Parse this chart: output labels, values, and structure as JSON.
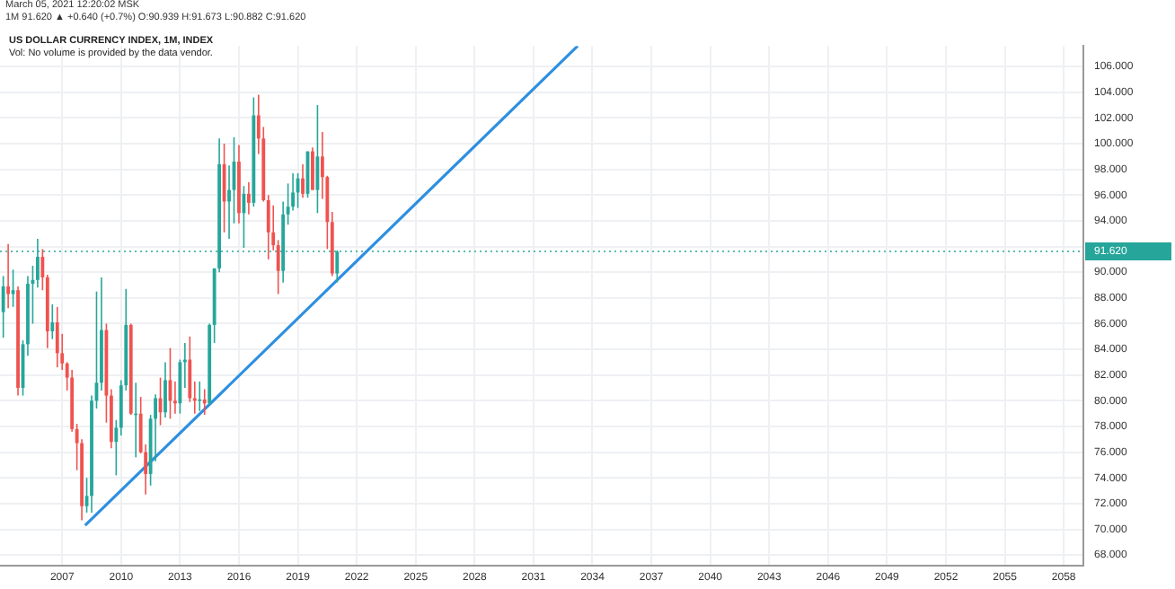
{
  "chart_data": {
    "type": "candlestick",
    "title": "US DOLLAR CURRENCY INDEX, 1M, INDEX",
    "subtitle": "Vol: No volume is provided by the data vendor.",
    "annotations": [
      "March 05, 2021 12:20:02 MSK",
      "1M 91.620 ▲ +0.640 (+0.7%) O:90.939 H:91.673 L:90.882 C:91.620"
    ],
    "x": [
      "2004-01",
      "2004-04",
      "2004-07",
      "2004-10",
      "2005-01",
      "2005-04",
      "2005-07",
      "2005-10",
      "2006-01",
      "2006-04",
      "2006-07",
      "2006-10",
      "2007-01",
      "2007-04",
      "2007-07",
      "2007-10",
      "2008-01",
      "2008-04",
      "2008-07",
      "2008-10",
      "2009-01",
      "2009-04",
      "2009-07",
      "2009-10",
      "2010-01",
      "2010-04",
      "2010-07",
      "2010-10",
      "2011-01",
      "2011-04",
      "2011-07",
      "2011-10",
      "2012-01",
      "2012-04",
      "2012-07",
      "2012-10",
      "2013-01",
      "2013-04",
      "2013-07",
      "2013-10",
      "2014-01",
      "2014-04",
      "2014-07",
      "2014-10",
      "2015-01",
      "2015-04",
      "2015-07",
      "2015-10",
      "2016-01",
      "2016-04",
      "2016-07",
      "2016-10",
      "2017-01",
      "2017-04",
      "2017-07",
      "2017-10",
      "2018-01",
      "2018-04",
      "2018-07",
      "2018-10",
      "2019-01",
      "2019-04",
      "2019-07",
      "2019-10",
      "2020-01",
      "2020-04",
      "2020-07",
      "2020-10",
      "2021-01"
    ],
    "ohlc": [
      [
        86.9,
        89.7,
        84.9,
        88.9
      ],
      [
        88.9,
        92.2,
        87.2,
        88.3
      ],
      [
        88.3,
        90.2,
        87.3,
        88.6
      ],
      [
        88.6,
        88.9,
        80.4,
        81.0
      ],
      [
        81.0,
        84.7,
        80.4,
        84.4
      ],
      [
        84.4,
        89.7,
        83.5,
        89.1
      ],
      [
        89.1,
        90.5,
        86.0,
        89.4
      ],
      [
        89.4,
        92.6,
        88.8,
        91.2
      ],
      [
        91.2,
        91.8,
        88.6,
        89.6
      ],
      [
        89.6,
        89.8,
        84.1,
        85.4
      ],
      [
        85.4,
        87.5,
        84.8,
        86.1
      ],
      [
        86.1,
        87.3,
        82.6,
        83.7
      ],
      [
        83.7,
        85.2,
        82.4,
        82.9
      ],
      [
        82.9,
        83.0,
        80.8,
        81.8
      ],
      [
        81.8,
        82.4,
        77.6,
        77.8
      ],
      [
        77.8,
        78.2,
        74.6,
        76.7
      ],
      [
        76.7,
        77.0,
        70.7,
        71.8
      ],
      [
        71.8,
        74.0,
        71.3,
        72.6
      ],
      [
        72.6,
        80.4,
        71.3,
        80.0
      ],
      [
        80.0,
        88.5,
        79.4,
        81.4
      ],
      [
        81.4,
        89.6,
        80.8,
        85.5
      ],
      [
        85.5,
        86.0,
        78.3,
        80.4
      ],
      [
        80.4,
        80.9,
        76.3,
        76.8
      ],
      [
        76.8,
        78.5,
        74.2,
        77.9
      ],
      [
        77.9,
        81.6,
        77.3,
        81.2
      ],
      [
        81.2,
        88.7,
        80.8,
        85.9
      ],
      [
        85.9,
        86.0,
        78.9,
        79.0
      ],
      [
        79.0,
        81.4,
        75.6,
        79.0
      ],
      [
        79.0,
        80.3,
        75.9,
        76.0
      ],
      [
        76.0,
        76.6,
        72.7,
        74.3
      ],
      [
        74.3,
        78.9,
        73.4,
        78.6
      ],
      [
        78.6,
        80.5,
        75.3,
        80.2
      ],
      [
        80.2,
        81.8,
        78.1,
        79.1
      ],
      [
        79.1,
        83.0,
        78.7,
        81.6
      ],
      [
        81.6,
        84.1,
        78.6,
        80.0
      ],
      [
        80.0,
        81.5,
        79.0,
        79.8
      ],
      [
        79.8,
        83.2,
        79.0,
        83.0
      ],
      [
        83.0,
        84.5,
        81.0,
        83.2
      ],
      [
        83.2,
        85.0,
        79.9,
        80.2
      ],
      [
        80.2,
        81.5,
        79.0,
        80.0
      ],
      [
        80.0,
        81.5,
        79.2,
        80.1
      ],
      [
        80.1,
        80.9,
        78.9,
        79.8
      ],
      [
        79.8,
        86.0,
        79.7,
        85.9
      ],
      [
        85.9,
        90.3,
        84.5,
        90.3
      ],
      [
        90.3,
        100.4,
        90.0,
        98.4
      ],
      [
        98.4,
        100.0,
        93.1,
        95.5
      ],
      [
        95.5,
        98.3,
        92.6,
        96.4
      ],
      [
        96.4,
        100.5,
        93.8,
        98.6
      ],
      [
        98.6,
        99.9,
        93.8,
        94.6
      ],
      [
        94.6,
        96.7,
        91.9,
        96.1
      ],
      [
        96.1,
        97.0,
        94.5,
        95.4
      ],
      [
        95.4,
        103.6,
        95.1,
        102.2
      ],
      [
        102.2,
        103.8,
        99.2,
        100.4
      ],
      [
        100.4,
        101.3,
        95.5,
        95.6
      ],
      [
        95.6,
        96.0,
        91.0,
        93.1
      ],
      [
        93.1,
        95.2,
        91.7,
        92.1
      ],
      [
        92.1,
        92.5,
        88.3,
        90.1
      ],
      [
        90.1,
        95.5,
        89.2,
        94.5
      ],
      [
        94.5,
        96.9,
        93.7,
        95.1
      ],
      [
        95.1,
        97.7,
        94.8,
        96.2
      ],
      [
        96.2,
        97.7,
        95.0,
        97.3
      ],
      [
        97.3,
        98.4,
        95.8,
        96.1
      ],
      [
        96.1,
        99.4,
        95.8,
        99.4
      ],
      [
        99.4,
        99.7,
        96.4,
        96.4
      ],
      [
        96.4,
        103.0,
        94.6,
        99.0
      ],
      [
        99.0,
        100.9,
        95.7,
        97.4
      ],
      [
        97.4,
        97.5,
        91.8,
        93.9
      ],
      [
        93.9,
        94.7,
        89.7,
        89.9
      ],
      [
        89.9,
        91.7,
        89.2,
        91.6
      ]
    ],
    "colors": [
      "#26a69a",
      "#ef5350",
      "#26a69a",
      "#ef5350",
      "#26a69a",
      "#26a69a",
      "#26a69a",
      "#26a69a",
      "#ef5350",
      "#ef5350",
      "#26a69a",
      "#ef5350",
      "#ef5350",
      "#ef5350",
      "#ef5350",
      "#ef5350",
      "#ef5350",
      "#26a69a",
      "#26a69a",
      "#26a69a",
      "#26a69a",
      "#ef5350",
      "#ef5350",
      "#26a69a",
      "#26a69a",
      "#26a69a",
      "#ef5350",
      "#26a69a",
      "#ef5350",
      "#ef5350",
      "#26a69a",
      "#26a69a",
      "#ef5350",
      "#26a69a",
      "#ef5350",
      "#ef5350",
      "#26a69a",
      "#26a69a",
      "#ef5350",
      "#ef5350",
      "#26a69a",
      "#ef5350",
      "#26a69a",
      "#26a69a",
      "#26a69a",
      "#ef5350",
      "#26a69a",
      "#26a69a",
      "#ef5350",
      "#26a69a",
      "#ef5350",
      "#26a69a",
      "#ef5350",
      "#ef5350",
      "#ef5350",
      "#ef5350",
      "#ef5350",
      "#26a69a",
      "#26a69a",
      "#26a69a",
      "#26a69a",
      "#ef5350",
      "#26a69a",
      "#ef5350",
      "#26a69a",
      "#ef5350",
      "#ef5350",
      "#ef5350",
      "#26a69a"
    ],
    "series": [
      {
        "type": "line",
        "color": "#2d8fe0",
        "x": [
          "2008-03",
          "2033-04"
        ],
        "values": [
          70.3,
          107.6
        ]
      }
    ],
    "ref_lines": [
      {
        "axis": "y",
        "value": 91.62,
        "label": "91.620",
        "color": "#26a69a",
        "line_style": "dotted"
      }
    ],
    "xlim": [
      "2003-11",
      "2059-01"
    ],
    "xticks": [
      "2007",
      "2010",
      "2013",
      "2016",
      "2019",
      "2022",
      "2025",
      "2028",
      "2031",
      "2034",
      "2037",
      "2040",
      "2043",
      "2046",
      "2049",
      "2052",
      "2055",
      "2058"
    ],
    "ylim": [
      67.2,
      107.6
    ],
    "yticks": [
      {
        "value": 68,
        "label": "68.000"
      },
      {
        "value": 70,
        "label": "70.000"
      },
      {
        "value": 72,
        "label": "72.000"
      },
      {
        "value": 74,
        "label": "74.000"
      },
      {
        "value": 76,
        "label": "76.000"
      },
      {
        "value": 78,
        "label": "78.000"
      },
      {
        "value": 80,
        "label": "80.000"
      },
      {
        "value": 82,
        "label": "82.000"
      },
      {
        "value": 84,
        "label": "84.000"
      },
      {
        "value": 86,
        "label": "86.000"
      },
      {
        "value": 88,
        "label": "88.000"
      },
      {
        "value": 90,
        "label": "90.000"
      },
      {
        "value": 92,
        "label": null
      },
      {
        "value": 94,
        "label": "94.000"
      },
      {
        "value": 96,
        "label": "96.000"
      },
      {
        "value": 98,
        "label": "98.000"
      },
      {
        "value": 100,
        "label": "100.000"
      },
      {
        "value": 102,
        "label": "102.000"
      },
      {
        "value": 104,
        "label": "104.000"
      },
      {
        "value": 106,
        "label": "106.000"
      }
    ],
    "grid": true,
    "legend": false
  }
}
